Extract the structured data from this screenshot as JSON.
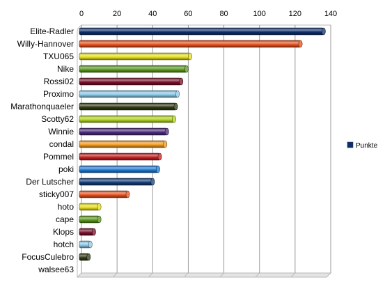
{
  "chart_data": {
    "type": "bar",
    "orientation": "horizontal",
    "style": "3d-cylinder",
    "categories": [
      "Elite-Radler",
      "Willy-Hannover",
      "TXU065",
      "Nike",
      "Rossi02",
      "Proximo",
      "Marathonquaeler",
      "Scotty62",
      "Winnie",
      "condal",
      "Pommel",
      "poki",
      "Der Lutscher",
      "sticky007",
      "hoto",
      "cape",
      "Klops",
      "hotch",
      "FocusCulebro",
      "walsee63"
    ],
    "series": [
      {
        "name": "Punkte",
        "values": [
          136,
          123,
          61,
          59,
          56,
          54,
          53,
          52,
          48,
          47,
          44,
          43,
          40,
          26,
          10,
          10,
          7,
          5,
          4,
          0
        ]
      }
    ],
    "bar_colors": [
      "#0d2f6b",
      "#e8501c",
      "#e6e01c",
      "#5a9a1e",
      "#7a0f2a",
      "#8cc8ea",
      "#2f3a12",
      "#b2d61e",
      "#4a2a7a",
      "#f29a1e",
      "#c41e1e",
      "#1e7ad6",
      "#123c78",
      "#e8501c",
      "#e6e01c",
      "#5a9a1e",
      "#7a0f2a",
      "#8cc8ea",
      "#2f3a12",
      "#b2d61e"
    ],
    "xlim": [
      0,
      140
    ],
    "xticks": [
      0,
      20,
      40,
      60,
      80,
      100,
      120,
      140
    ],
    "grid": true,
    "legend_position": "right",
    "legend_color": "#0d2f6b",
    "title": "",
    "xlabel": "",
    "ylabel": ""
  }
}
